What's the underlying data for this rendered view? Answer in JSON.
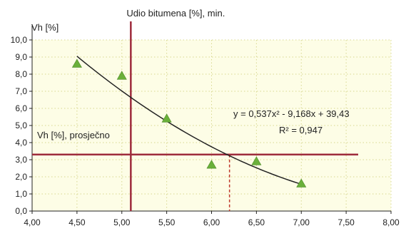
{
  "chart_data": {
    "type": "scatter",
    "title": "",
    "ylabel": "Vh [%]",
    "xlabel": "",
    "xlim": [
      4.0,
      8.0
    ],
    "ylim": [
      0.0,
      10.0
    ],
    "x_ticks": [
      "4,00",
      "4,50",
      "5,00",
      "5,50",
      "6,00",
      "6,50",
      "7,00",
      "7,50",
      "8,00"
    ],
    "y_ticks": [
      "0,0",
      "1,0",
      "2,0",
      "3,0",
      "4,0",
      "5,0",
      "6,0",
      "7,0",
      "8,0",
      "9,0",
      "10,0"
    ],
    "grid": true,
    "background_color": "#fdfde6",
    "grid_color": "#d8d890",
    "series": [
      {
        "marker": "triangle",
        "color": "#6ab03a",
        "points": [
          {
            "x": 4.5,
            "y": 8.6
          },
          {
            "x": 5.0,
            "y": 7.9
          },
          {
            "x": 5.5,
            "y": 5.4
          },
          {
            "x": 6.0,
            "y": 2.7
          },
          {
            "x": 6.5,
            "y": 2.9
          },
          {
            "x": 7.0,
            "y": 1.6
          }
        ]
      }
    ],
    "trendline": {
      "type": "polynomial",
      "a": 0.537,
      "b": -9.168,
      "c": 39.43,
      "x_range": [
        4.5,
        7.0
      ],
      "color": "#222222",
      "equation_label": "y = 0,537x² - 9,168x + 39,43",
      "r2_label": "R² = 0,947"
    },
    "reference_lines": {
      "color": "#9e2b3c",
      "vertical": {
        "x": 5.1,
        "label": "Udio bitumena [%], min."
      },
      "horizontal": {
        "y": 3.3,
        "label": "Vh [%], prosječno"
      },
      "intersection_x": 6.2
    }
  }
}
